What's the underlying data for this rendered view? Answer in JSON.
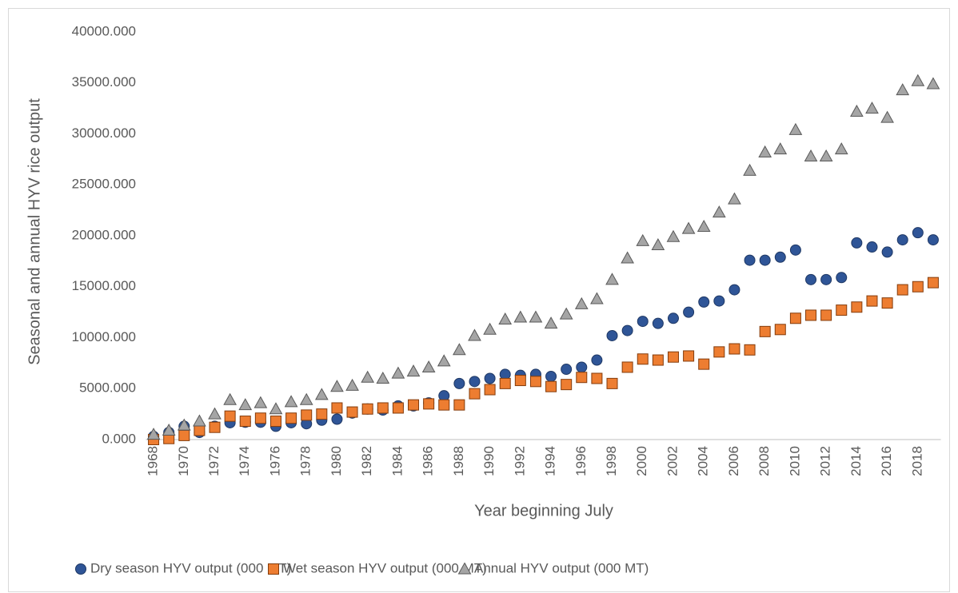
{
  "chart_data": {
    "type": "scatter",
    "x_label": "Year beginning July",
    "y_label": "Seasonal and annual HYV rice output",
    "x": [
      1968,
      1969,
      1970,
      1971,
      1972,
      1973,
      1974,
      1975,
      1976,
      1977,
      1978,
      1979,
      1980,
      1981,
      1982,
      1983,
      1984,
      1985,
      1986,
      1987,
      1988,
      1989,
      1990,
      1991,
      1992,
      1993,
      1994,
      1995,
      1996,
      1997,
      1998,
      1999,
      2000,
      2001,
      2002,
      2003,
      2004,
      2005,
      2006,
      2007,
      2008,
      2009,
      2010,
      2011,
      2012,
      2013,
      2014,
      2015,
      2016,
      2017,
      2018,
      2019
    ],
    "series": [
      {
        "name": "Dry season HYV output (000 MT)",
        "color": "#2f5597",
        "marker": "circle",
        "values": [
          300,
          700,
          1300,
          700,
          1300,
          1650,
          1700,
          1700,
          1300,
          1650,
          1550,
          1900,
          2000,
          2600,
          3000,
          2900,
          3300,
          3300,
          3600,
          4300,
          5500,
          5700,
          6000,
          6400,
          6300,
          6400,
          6200,
          6900,
          7100,
          7800,
          10200,
          10700,
          11600,
          11400,
          11900,
          12500,
          13500,
          13600,
          14700,
          17600,
          17600,
          17900,
          18600,
          15700,
          15700,
          15900,
          19300,
          18900,
          18400,
          19600,
          20300,
          19600
        ]
      },
      {
        "name": "Wet season HYV output (000 MT)",
        "color": "#ed7d31",
        "marker": "square",
        "values": [
          0,
          100,
          400,
          900,
          1200,
          2300,
          1800,
          2100,
          1800,
          2100,
          2400,
          2500,
          3100,
          2700,
          3000,
          3100,
          3100,
          3400,
          3500,
          3400,
          3400,
          4500,
          4900,
          5500,
          5800,
          5700,
          5200,
          5400,
          6100,
          6000,
          5500,
          7100,
          7900,
          7800,
          8100,
          8200,
          7400,
          8600,
          8900,
          8800,
          10600,
          10800,
          11900,
          12200,
          12200,
          12700,
          13000,
          13600,
          13400,
          14700,
          15000,
          15400
        ]
      },
      {
        "name": "Annual HYV output (000 MT)",
        "color": "#a5a5a5",
        "marker": "triangle",
        "values": [
          500,
          900,
          1400,
          1800,
          2500,
          3900,
          3400,
          3600,
          3000,
          3700,
          3900,
          4400,
          5200,
          5300,
          6100,
          6000,
          6500,
          6700,
          7100,
          7700,
          8800,
          10200,
          10800,
          11800,
          12000,
          12000,
          11400,
          12300,
          13300,
          13800,
          15700,
          17800,
          19500,
          19100,
          19900,
          20700,
          20900,
          22300,
          23600,
          26400,
          28200,
          28500,
          30400,
          27800,
          27800,
          28500,
          32200,
          32500,
          31600,
          34300,
          35200,
          34900
        ]
      }
    ],
    "xlim": [
      1967.5,
      2019.5
    ],
    "xticks": [
      1968,
      1970,
      1972,
      1974,
      1976,
      1978,
      1980,
      1982,
      1984,
      1986,
      1988,
      1990,
      1992,
      1994,
      1996,
      1998,
      2000,
      2002,
      2004,
      2006,
      2008,
      2010,
      2012,
      2014,
      2016,
      2018
    ],
    "ylim": [
      0,
      40000
    ],
    "yticks": [
      {
        "value": 0,
        "label": "0.000"
      },
      {
        "value": 5000,
        "label": "5000.000"
      },
      {
        "value": 10000,
        "label": "10000.000"
      },
      {
        "value": 15000,
        "label": "15000.000"
      },
      {
        "value": 20000,
        "label": "20000.000"
      },
      {
        "value": 25000,
        "label": "25000.000"
      },
      {
        "value": 30000,
        "label": "30000.000"
      },
      {
        "value": 35000,
        "label": "35000.000"
      },
      {
        "value": 40000,
        "label": "40000.000"
      }
    ],
    "grid": false,
    "legend": "bottom"
  }
}
